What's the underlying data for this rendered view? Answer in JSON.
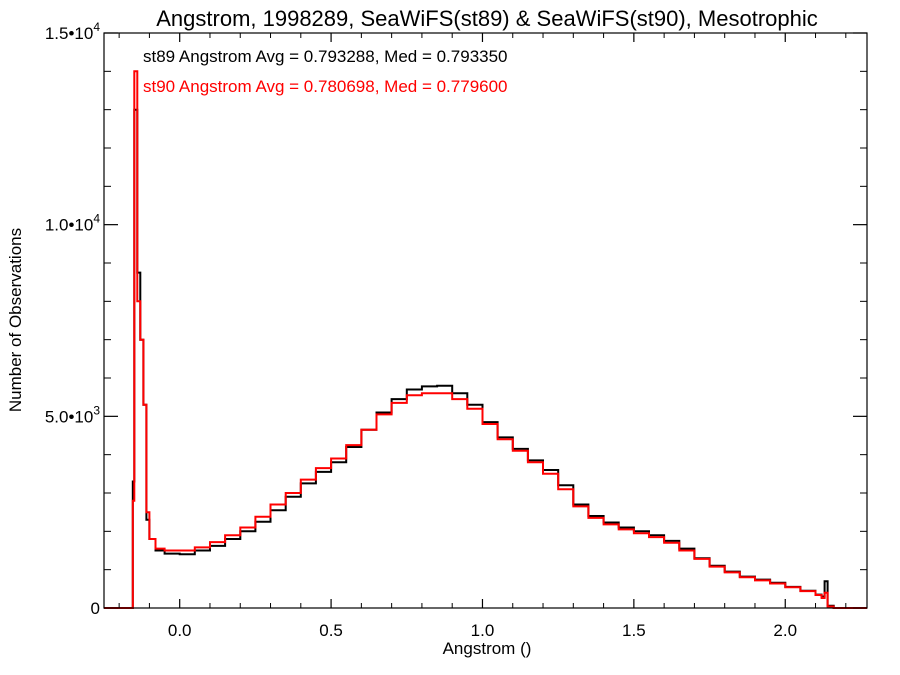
{
  "chart_data": {
    "type": "line",
    "title": "Angstrom, 1998289, SeaWiFS(st89) & SeaWiFS(st90), Mesotrophic",
    "xlabel": "Angstrom ()",
    "ylabel": "Number of Observations",
    "xlim": [
      -0.25,
      2.27
    ],
    "ylim": [
      0,
      15000
    ],
    "x_ticks": [
      {
        "value": 0.0,
        "label": "0.0"
      },
      {
        "value": 0.5,
        "label": "0.5"
      },
      {
        "value": 1.0,
        "label": "1.0"
      },
      {
        "value": 1.5,
        "label": "1.5"
      },
      {
        "value": 2.0,
        "label": "2.0"
      }
    ],
    "y_ticks": [
      {
        "value": 0,
        "mantissa": "0",
        "exponent": ""
      },
      {
        "value": 5000,
        "mantissa": "5.0•10",
        "exponent": "3"
      },
      {
        "value": 10000,
        "mantissa": "1.0•10",
        "exponent": "4"
      },
      {
        "value": 15000,
        "mantissa": "1.5•10",
        "exponent": "4"
      }
    ],
    "grid": false,
    "legend": "top-left",
    "series": [
      {
        "name": "st89",
        "color": "#000000",
        "annotation": "st89 Angstrom Avg = 0.793288, Med = 0.793350",
        "points": [
          [
            -0.25,
            0
          ],
          [
            -0.16,
            0
          ],
          [
            -0.155,
            3300
          ],
          [
            -0.15,
            13000
          ],
          [
            -0.14,
            8750
          ],
          [
            -0.13,
            7000
          ],
          [
            -0.12,
            5300
          ],
          [
            -0.11,
            2300
          ],
          [
            -0.1,
            1800
          ],
          [
            -0.08,
            1500
          ],
          [
            -0.05,
            1420
          ],
          [
            0.0,
            1400
          ],
          [
            0.05,
            1500
          ],
          [
            0.1,
            1620
          ],
          [
            0.15,
            1800
          ],
          [
            0.2,
            2000
          ],
          [
            0.25,
            2250
          ],
          [
            0.3,
            2550
          ],
          [
            0.35,
            2900
          ],
          [
            0.4,
            3250
          ],
          [
            0.45,
            3550
          ],
          [
            0.5,
            3800
          ],
          [
            0.55,
            4200
          ],
          [
            0.6,
            4650
          ],
          [
            0.65,
            5100
          ],
          [
            0.7,
            5450
          ],
          [
            0.75,
            5700
          ],
          [
            0.8,
            5780
          ],
          [
            0.85,
            5800
          ],
          [
            0.9,
            5600
          ],
          [
            0.95,
            5300
          ],
          [
            1.0,
            4850
          ],
          [
            1.05,
            4450
          ],
          [
            1.1,
            4150
          ],
          [
            1.15,
            3850
          ],
          [
            1.2,
            3600
          ],
          [
            1.25,
            3200
          ],
          [
            1.3,
            2700
          ],
          [
            1.35,
            2400
          ],
          [
            1.4,
            2230
          ],
          [
            1.45,
            2100
          ],
          [
            1.5,
            2000
          ],
          [
            1.55,
            1900
          ],
          [
            1.6,
            1750
          ],
          [
            1.65,
            1550
          ],
          [
            1.7,
            1300
          ],
          [
            1.75,
            1100
          ],
          [
            1.8,
            950
          ],
          [
            1.85,
            820
          ],
          [
            1.9,
            740
          ],
          [
            1.95,
            660
          ],
          [
            2.0,
            550
          ],
          [
            2.05,
            450
          ],
          [
            2.1,
            350
          ],
          [
            2.12,
            300
          ],
          [
            2.13,
            700
          ],
          [
            2.14,
            60
          ],
          [
            2.16,
            0
          ],
          [
            2.27,
            0
          ]
        ]
      },
      {
        "name": "st90",
        "color": "#ff0000",
        "annotation": "st90 Angstrom Avg = 0.780698, Med = 0.779600",
        "points": [
          [
            -0.25,
            0
          ],
          [
            -0.16,
            0
          ],
          [
            -0.155,
            2800
          ],
          [
            -0.15,
            14000
          ],
          [
            -0.14,
            8000
          ],
          [
            -0.13,
            7000
          ],
          [
            -0.12,
            5300
          ],
          [
            -0.11,
            2500
          ],
          [
            -0.1,
            1800
          ],
          [
            -0.08,
            1550
          ],
          [
            -0.05,
            1500
          ],
          [
            0.0,
            1500
          ],
          [
            0.05,
            1580
          ],
          [
            0.1,
            1720
          ],
          [
            0.15,
            1900
          ],
          [
            0.2,
            2100
          ],
          [
            0.25,
            2380
          ],
          [
            0.3,
            2700
          ],
          [
            0.35,
            3000
          ],
          [
            0.4,
            3350
          ],
          [
            0.45,
            3650
          ],
          [
            0.5,
            3900
          ],
          [
            0.55,
            4250
          ],
          [
            0.6,
            4650
          ],
          [
            0.65,
            5050
          ],
          [
            0.7,
            5350
          ],
          [
            0.75,
            5550
          ],
          [
            0.8,
            5600
          ],
          [
            0.85,
            5600
          ],
          [
            0.9,
            5450
          ],
          [
            0.95,
            5200
          ],
          [
            1.0,
            4800
          ],
          [
            1.05,
            4400
          ],
          [
            1.1,
            4100
          ],
          [
            1.15,
            3800
          ],
          [
            1.2,
            3500
          ],
          [
            1.25,
            3100
          ],
          [
            1.3,
            2650
          ],
          [
            1.35,
            2350
          ],
          [
            1.4,
            2180
          ],
          [
            1.45,
            2050
          ],
          [
            1.5,
            1950
          ],
          [
            1.55,
            1850
          ],
          [
            1.6,
            1700
          ],
          [
            1.65,
            1500
          ],
          [
            1.7,
            1280
          ],
          [
            1.75,
            1080
          ],
          [
            1.8,
            930
          ],
          [
            1.85,
            800
          ],
          [
            1.9,
            720
          ],
          [
            1.95,
            640
          ],
          [
            2.0,
            540
          ],
          [
            2.05,
            440
          ],
          [
            2.1,
            340
          ],
          [
            2.12,
            260
          ],
          [
            2.13,
            400
          ],
          [
            2.14,
            40
          ],
          [
            2.16,
            0
          ],
          [
            2.27,
            0
          ]
        ]
      }
    ]
  }
}
